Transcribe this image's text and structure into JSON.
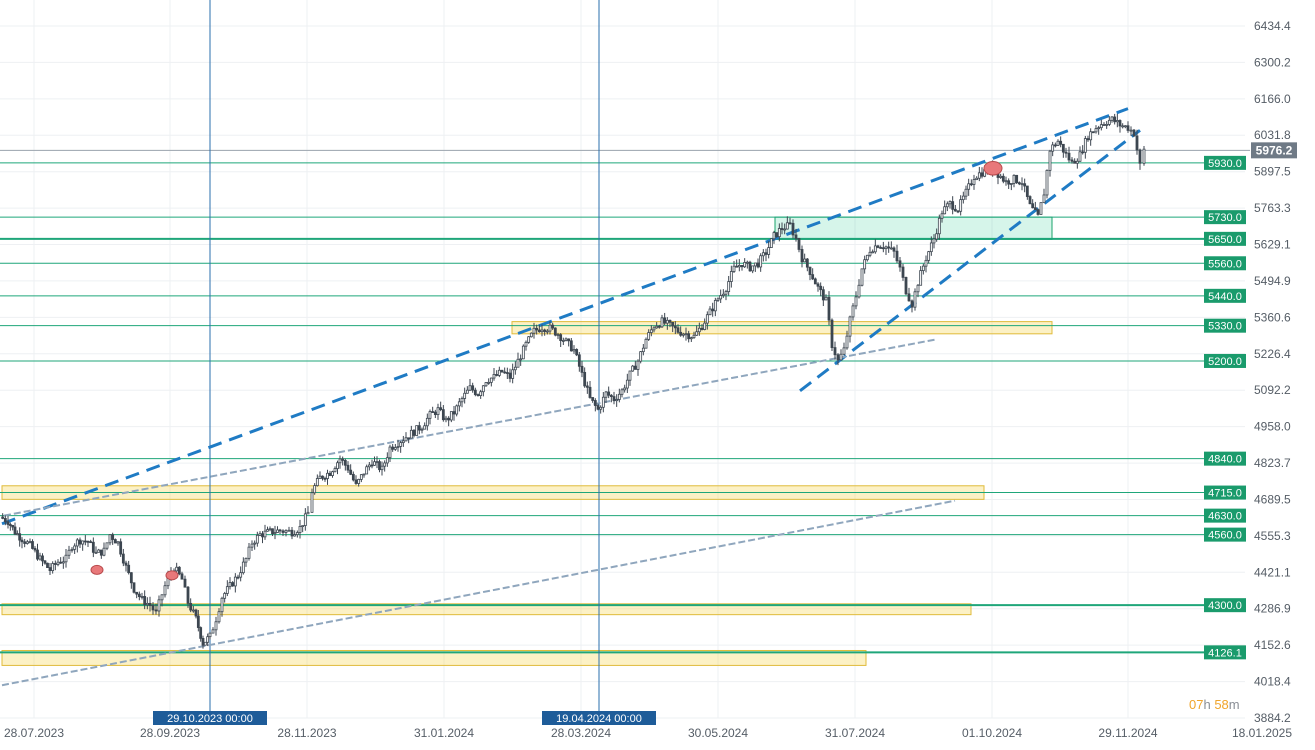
{
  "chart_data": {
    "type": "candlestick",
    "instrument_current_price": "5976.2",
    "y_axis": {
      "min": 3884.2,
      "max": 6480,
      "ticks": [
        "6434.4",
        "6300.2",
        "6166.0",
        "6031.8",
        "5897.5",
        "5763.3",
        "5629.1",
        "5494.9",
        "5360.6",
        "5226.4",
        "5092.2",
        "4958.0",
        "4823.7",
        "4689.5",
        "4555.3",
        "4421.1",
        "4286.9",
        "4152.6",
        "4018.4",
        "3884.2"
      ]
    },
    "x_axis": {
      "ticks": [
        "28.07.2023",
        "28.09.2023",
        "28.11.2023",
        "31.01.2024",
        "28.03.2024",
        "30.05.2024",
        "31.07.2024",
        "01.10.2024",
        "29.11.2024",
        "18.01.2025"
      ]
    },
    "price_levels": [
      "5930.0",
      "5730.0",
      "5650.0",
      "5560.0",
      "5440.0",
      "5330.0",
      "5200.0",
      "4840.0",
      "4715.0",
      "4630.0",
      "4560.0",
      "4300.0",
      "4126.1"
    ],
    "vertical_markers": [
      "29.10.2023 00:00",
      "19.04.2024 00:00"
    ],
    "support_resistance_zones": [
      {
        "from": 5300,
        "to": 5345
      },
      {
        "from": 4690,
        "to": 4740
      },
      {
        "from": 4265,
        "to": 4305
      },
      {
        "from": 4078,
        "to": 4133
      },
      {
        "from": 5648,
        "to": 5730
      }
    ],
    "close_path": [
      [
        0,
        4625
      ],
      [
        8,
        4610
      ],
      [
        15,
        4570
      ],
      [
        22,
        4545
      ],
      [
        30,
        4520
      ],
      [
        40,
        4470
      ],
      [
        50,
        4430
      ],
      [
        58,
        4460
      ],
      [
        66,
        4470
      ],
      [
        72,
        4520
      ],
      [
        80,
        4540
      ],
      [
        88,
        4535
      ],
      [
        96,
        4490
      ],
      [
        104,
        4500
      ],
      [
        110,
        4560
      ],
      [
        118,
        4530
      ],
      [
        126,
        4440
      ],
      [
        134,
        4360
      ],
      [
        142,
        4320
      ],
      [
        150,
        4300
      ],
      [
        156,
        4270
      ],
      [
        162,
        4340
      ],
      [
        168,
        4400
      ],
      [
        174,
        4440
      ],
      [
        182,
        4395
      ],
      [
        188,
        4310
      ],
      [
        196,
        4250
      ],
      [
        203,
        4160
      ],
      [
        210,
        4185
      ],
      [
        216,
        4250
      ],
      [
        222,
        4330
      ],
      [
        230,
        4370
      ],
      [
        238,
        4410
      ],
      [
        246,
        4470
      ],
      [
        252,
        4530
      ],
      [
        260,
        4560
      ],
      [
        270,
        4570
      ],
      [
        280,
        4575
      ],
      [
        292,
        4570
      ],
      [
        300,
        4585
      ],
      [
        308,
        4640
      ],
      [
        312,
        4720
      ],
      [
        320,
        4770
      ],
      [
        330,
        4790
      ],
      [
        340,
        4840
      ],
      [
        348,
        4805
      ],
      [
        356,
        4740
      ],
      [
        364,
        4790
      ],
      [
        372,
        4830
      ],
      [
        382,
        4800
      ],
      [
        390,
        4880
      ],
      [
        398,
        4900
      ],
      [
        406,
        4920
      ],
      [
        414,
        4940
      ],
      [
        422,
        4960
      ],
      [
        430,
        5000
      ],
      [
        438,
        5020
      ],
      [
        446,
        4980
      ],
      [
        454,
        5010
      ],
      [
        462,
        5060
      ],
      [
        470,
        5100
      ],
      [
        478,
        5080
      ],
      [
        486,
        5130
      ],
      [
        494,
        5140
      ],
      [
        502,
        5160
      ],
      [
        510,
        5140
      ],
      [
        518,
        5200
      ],
      [
        526,
        5260
      ],
      [
        534,
        5310
      ],
      [
        542,
        5325
      ],
      [
        550,
        5320
      ],
      [
        558,
        5300
      ],
      [
        566,
        5270
      ],
      [
        574,
        5240
      ],
      [
        582,
        5150
      ],
      [
        590,
        5060
      ],
      [
        598,
        5020
      ],
      [
        606,
        5080
      ],
      [
        614,
        5060
      ],
      [
        622,
        5090
      ],
      [
        630,
        5150
      ],
      [
        638,
        5200
      ],
      [
        646,
        5280
      ],
      [
        654,
        5330
      ],
      [
        662,
        5345
      ],
      [
        670,
        5330
      ],
      [
        678,
        5310
      ],
      [
        686,
        5300
      ],
      [
        694,
        5290
      ],
      [
        702,
        5330
      ],
      [
        710,
        5380
      ],
      [
        718,
        5430
      ],
      [
        726,
        5470
      ],
      [
        734,
        5540
      ],
      [
        742,
        5560
      ],
      [
        750,
        5545
      ],
      [
        758,
        5560
      ],
      [
        766,
        5600
      ],
      [
        774,
        5660
      ],
      [
        782,
        5690
      ],
      [
        790,
        5700
      ],
      [
        796,
        5650
      ],
      [
        802,
        5580
      ],
      [
        810,
        5530
      ],
      [
        818,
        5470
      ],
      [
        826,
        5420
      ],
      [
        832,
        5260
      ],
      [
        838,
        5200
      ],
      [
        844,
        5240
      ],
      [
        850,
        5350
      ],
      [
        856,
        5440
      ],
      [
        862,
        5540
      ],
      [
        870,
        5610
      ],
      [
        878,
        5630
      ],
      [
        886,
        5620
      ],
      [
        894,
        5600
      ],
      [
        900,
        5540
      ],
      [
        906,
        5460
      ],
      [
        912,
        5410
      ],
      [
        918,
        5490
      ],
      [
        926,
        5580
      ],
      [
        934,
        5650
      ],
      [
        942,
        5750
      ],
      [
        950,
        5780
      ],
      [
        958,
        5760
      ],
      [
        966,
        5820
      ],
      [
        974,
        5880
      ],
      [
        982,
        5895
      ],
      [
        990,
        5905
      ],
      [
        998,
        5890
      ],
      [
        1006,
        5860
      ],
      [
        1014,
        5870
      ],
      [
        1022,
        5860
      ],
      [
        1030,
        5770
      ],
      [
        1038,
        5730
      ],
      [
        1044,
        5820
      ],
      [
        1050,
        5980
      ],
      [
        1058,
        6010
      ],
      [
        1066,
        5960
      ],
      [
        1072,
        5930
      ],
      [
        1080,
        5960
      ],
      [
        1088,
        6030
      ],
      [
        1096,
        6060
      ],
      [
        1104,
        6080
      ],
      [
        1112,
        6090
      ],
      [
        1120,
        6070
      ],
      [
        1128,
        6060
      ],
      [
        1134,
        6040
      ],
      [
        1140,
        5920
      ],
      [
        1144,
        5976.2
      ]
    ]
  },
  "timer": {
    "hours": "07",
    "h": "h",
    "minutes": "58",
    "m": "m"
  }
}
